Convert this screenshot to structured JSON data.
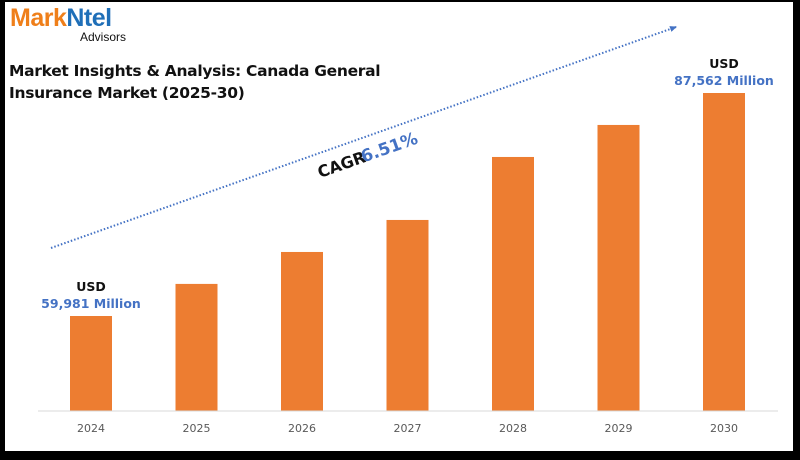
{
  "logo": {
    "brand_part1": "Mark",
    "brand_part2": "Ntel",
    "subtitle": "Advisors"
  },
  "colors": {
    "bar": "#ed7d31",
    "accent": "#4472c4",
    "axis": "#d9d9d9",
    "logo_orange": "#ef7f1a",
    "logo_blue": "#1f6fb8"
  },
  "chart_data": {
    "type": "bar",
    "title": "Market Insights & Analysis: Canada General Insurance Market (2025-30)",
    "title_lines": [
      "Market Insights & Analysis: Canada General",
      "Insurance Market (2025-30)"
    ],
    "xlabel": "",
    "ylabel": "",
    "unit": "USD Million",
    "categories": [
      "2024",
      "2025",
      "2026",
      "2027",
      "2028",
      "2029",
      "2030"
    ],
    "values": [
      59981,
      63950,
      67900,
      71860,
      79650,
      83610,
      87562
    ],
    "labeled_points": [
      {
        "category": "2024",
        "currency": "USD",
        "value_label": "59,981 Million"
      },
      {
        "category": "2030",
        "currency": "USD",
        "value_label": "87,562 Million"
      }
    ],
    "annotation": {
      "label": "CAGR",
      "value": "6.51%",
      "style": "dotted trend arrow"
    },
    "grid": false,
    "legend": "none",
    "y_axis_visible": false
  }
}
